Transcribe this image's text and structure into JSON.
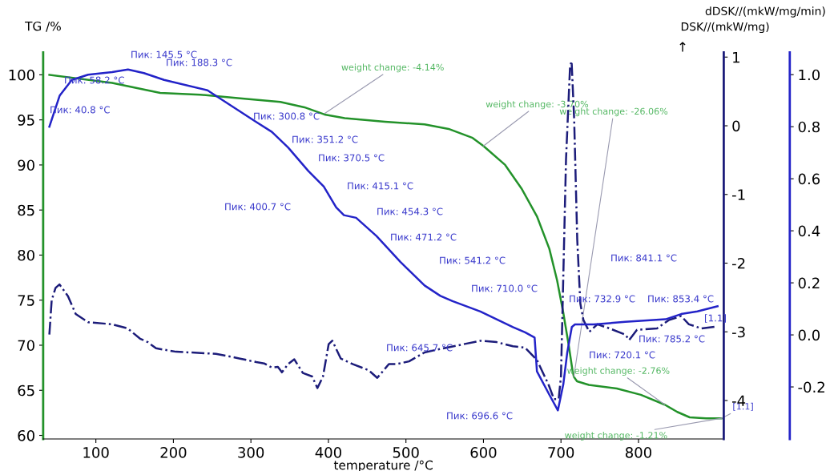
{
  "chart_data": {
    "type": "line",
    "xlabel": "temperature /°C",
    "ylabel": "TG /%",
    "y2label": "dDSK//(mkW/mg/min)",
    "y3label": "DSK//(mkW/mg)",
    "xlim": [
      32,
      910
    ],
    "xticks": [
      100,
      200,
      300,
      400,
      500,
      600,
      700,
      800
    ],
    "ylim": [
      59.6,
      102.5
    ],
    "yticks": [
      60,
      65,
      70,
      75,
      80,
      85,
      90,
      95,
      100
    ],
    "y2lim": [
      -4.56,
      1.07
    ],
    "y2ticks": [
      -4,
      -3,
      -2,
      -1,
      0,
      1
    ],
    "y3lim": [
      -0.4,
      1.086
    ],
    "y3ticks": [
      {
        "value": -0.2,
        "label": "-0.2"
      },
      {
        "value": 0,
        "label": "0.0"
      },
      {
        "value": 0.2,
        "label": "0.2"
      },
      {
        "value": 0.4,
        "label": "0.4"
      },
      {
        "value": 0.6,
        "label": "0.6"
      },
      {
        "value": 0.8,
        "label": "0.8"
      },
      {
        "value": 1.0,
        "label": "1.0"
      }
    ],
    "grid": false,
    "series": [
      {
        "color": "#23922a",
        "line_style": "solid",
        "x": [
          40,
          121,
          183,
          234.5,
          286,
          338,
          369,
          395,
          421,
          473,
          524,
          555,
          586,
          600,
          628,
          649,
          669,
          685,
          695,
          703,
          710,
          714.5,
          716.6,
          720.7,
          736,
          772,
          803,
          834,
          850,
          866,
          887,
          907
        ],
        "values": [
          100.0,
          99.1,
          98.0,
          97.8,
          97.4,
          97.0,
          96.4,
          95.6,
          95.2,
          94.8,
          94.5,
          94.0,
          93.0,
          92.1,
          90.0,
          87.4,
          84.3,
          80.7,
          77.2,
          73.6,
          70.0,
          67.4,
          66.5,
          66.0,
          65.6,
          65.2,
          64.5,
          63.4,
          62.6,
          62.0,
          61.9,
          61.9
        ]
      },
      {
        "color": "#1c1c7a",
        "line_style": "dashdot",
        "axis": "y2",
        "x": [
          40,
          43,
          48,
          53,
          64,
          74,
          90,
          121,
          141,
          157,
          167,
          177.6,
          203.5,
          255,
          286,
          307,
          317,
          327,
          334.8,
          340,
          348,
          356,
          367,
          379,
          385.8,
          393,
          400.3,
          405,
          416,
          431.6,
          452,
          463,
          478,
          488,
          504,
          524,
          540,
          596,
          617,
          638,
          653.7,
          669,
          684,
          691,
          697,
          700,
          706.5,
          711.7,
          713.7,
          717,
          721,
          725,
          729,
          736.6,
          747,
          762.5,
          783,
          788,
          798,
          824,
          839,
          855,
          865,
          881,
          902
        ],
        "values": [
          -3.04,
          -2.54,
          -2.36,
          -2.31,
          -2.48,
          -2.74,
          -2.86,
          -2.89,
          -2.95,
          -3.1,
          -3.15,
          -3.24,
          -3.29,
          -3.32,
          -3.39,
          -3.44,
          -3.46,
          -3.52,
          -3.51,
          -3.59,
          -3.47,
          -3.4,
          -3.6,
          -3.65,
          -3.82,
          -3.65,
          -3.18,
          -3.13,
          -3.39,
          -3.47,
          -3.56,
          -3.67,
          -3.47,
          -3.47,
          -3.43,
          -3.3,
          -3.26,
          -3.13,
          -3.15,
          -3.21,
          -3.23,
          -3.41,
          -3.77,
          -3.98,
          -3.98,
          -3.65,
          -0.49,
          0.86,
          0.94,
          0.1,
          -1.66,
          -2.59,
          -2.83,
          -3.0,
          -2.89,
          -2.95,
          -3.04,
          -3.12,
          -2.97,
          -2.95,
          -2.83,
          -2.77,
          -2.89,
          -2.95,
          -2.92
        ]
      },
      {
        "color": "#2323c8",
        "line_style": "solid",
        "axis": "y3",
        "x": [
          40,
          53.4,
          69,
          90,
          121,
          141.4,
          162,
          188,
          244,
          275,
          306,
          327,
          348,
          374,
          394,
          410,
          420,
          435.7,
          462,
          493,
          524,
          544.4,
          560,
          596,
          638,
          653.7,
          666,
          669,
          685,
          696,
          703,
          708,
          714,
          718,
          742,
          783,
          835,
          855,
          876,
          902
        ],
        "values": [
          0.8,
          0.92,
          0.98,
          1.0,
          1.01,
          1.02,
          1.006,
          0.98,
          0.94,
          0.88,
          0.82,
          0.78,
          0.72,
          0.63,
          0.57,
          0.49,
          0.46,
          0.45,
          0.38,
          0.28,
          0.19,
          0.15,
          0.13,
          0.09,
          0.03,
          0.01,
          -0.01,
          -0.14,
          -0.23,
          -0.29,
          -0.19,
          -0.07,
          0.03,
          0.04,
          0.04,
          0.05,
          0.06,
          0.08,
          0.09,
          0.11
        ]
      }
    ],
    "annotations": [
      "Пик: 40.8 °C",
      "Пик: 58.2 °C",
      "Пик: 145.5 °C",
      "Пик: 188.3 °C",
      "Пик: 300.8 °C",
      "Пик: 351.2 °C",
      "Пик: 370.5 °C",
      "Пик: 400.7 °C",
      "Пик: 415.1 °C",
      "Пик: 454.3 °C",
      "Пик: 471.2 °C",
      "Пик: 541.2 °C",
      "Пик: 645.7 °C",
      "Пик: 696.6 °C",
      "Пик: 710.0 °C",
      "Пик: 720.1 °C",
      "Пик: 732.9 °C",
      "Пик: 785.2 °C",
      "Пик: 841.1 °C",
      "Пик: 853.4 °C",
      {
        "text": "weight change: -4.14%",
        "x": 395,
        "y": 95.7
      },
      {
        "text": "weight change: -3.70%",
        "x": 600,
        "y": 92.1
      },
      {
        "text": "weight change: -26.06%",
        "x": 716.6,
        "y": 66.5
      },
      {
        "text": "weight change: -2.76%",
        "x": 834,
        "y": 63.4
      },
      {
        "text": "weight change: -1.21%",
        "x": 907,
        "y": 61.9
      },
      "[1.1]",
      {
        "text": "[1.1]",
        "x": 907,
        "y": 61.9
      },
      "↑"
    ]
  }
}
